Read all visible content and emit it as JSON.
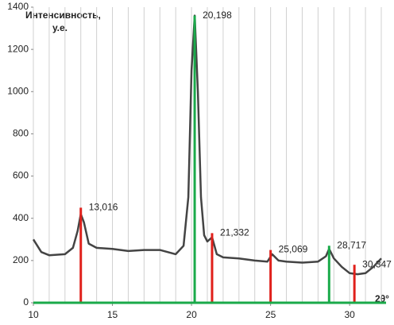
{
  "chart_data": {
    "type": "line",
    "y_label": [
      "Интенсивность,",
      "у.е."
    ],
    "x_label": "2θ°",
    "xlim": [
      10,
      32
    ],
    "ylim": [
      0,
      1400
    ],
    "xticks": [
      10,
      15,
      20,
      25,
      30
    ],
    "yticks": [
      0,
      200,
      400,
      600,
      800,
      1000,
      1200,
      1400
    ],
    "x_grid": [
      11,
      12,
      13,
      14,
      15,
      16,
      17,
      18,
      19,
      20,
      21,
      22,
      23,
      24,
      25,
      26,
      27,
      28,
      29,
      30,
      31,
      32
    ],
    "series": [
      {
        "color": "#444444",
        "x": [
          10,
          10.5,
          11,
          12,
          12.5,
          12.8,
          13,
          13.2,
          13.5,
          14,
          15,
          16,
          17,
          18,
          19,
          19.5,
          19.8,
          20,
          20.2,
          20.4,
          20.6,
          20.8,
          21,
          21.3,
          21.6,
          22,
          23,
          24,
          24.8,
          25.1,
          25.5,
          26,
          27,
          28,
          28.5,
          28.7,
          29,
          29.5,
          30,
          30.5,
          31,
          31.5,
          32
        ],
        "values": [
          300,
          240,
          225,
          230,
          260,
          340,
          420,
          380,
          280,
          260,
          255,
          245,
          250,
          250,
          230,
          270,
          500,
          1100,
          1360,
          1000,
          500,
          320,
          290,
          310,
          230,
          215,
          210,
          200,
          195,
          230,
          200,
          195,
          190,
          195,
          220,
          255,
          210,
          170,
          140,
          135,
          140,
          170,
          210
        ]
      }
    ],
    "sticks": {
      "x": [
        13.0,
        20.2,
        21.3,
        25.0,
        28.7,
        30.3
      ],
      "values": [
        450,
        1360,
        330,
        250,
        270,
        180
      ],
      "colors": [
        "#e0201b",
        "#1aaa4a",
        "#e0201b",
        "#e0201b",
        "#1aaa4a",
        "#e0201b"
      ],
      "labels": [
        "13,016",
        "20,198",
        "21,332",
        "25,069",
        "28,717",
        "30,347"
      ]
    },
    "baseline_color": "#1aaa4a"
  }
}
